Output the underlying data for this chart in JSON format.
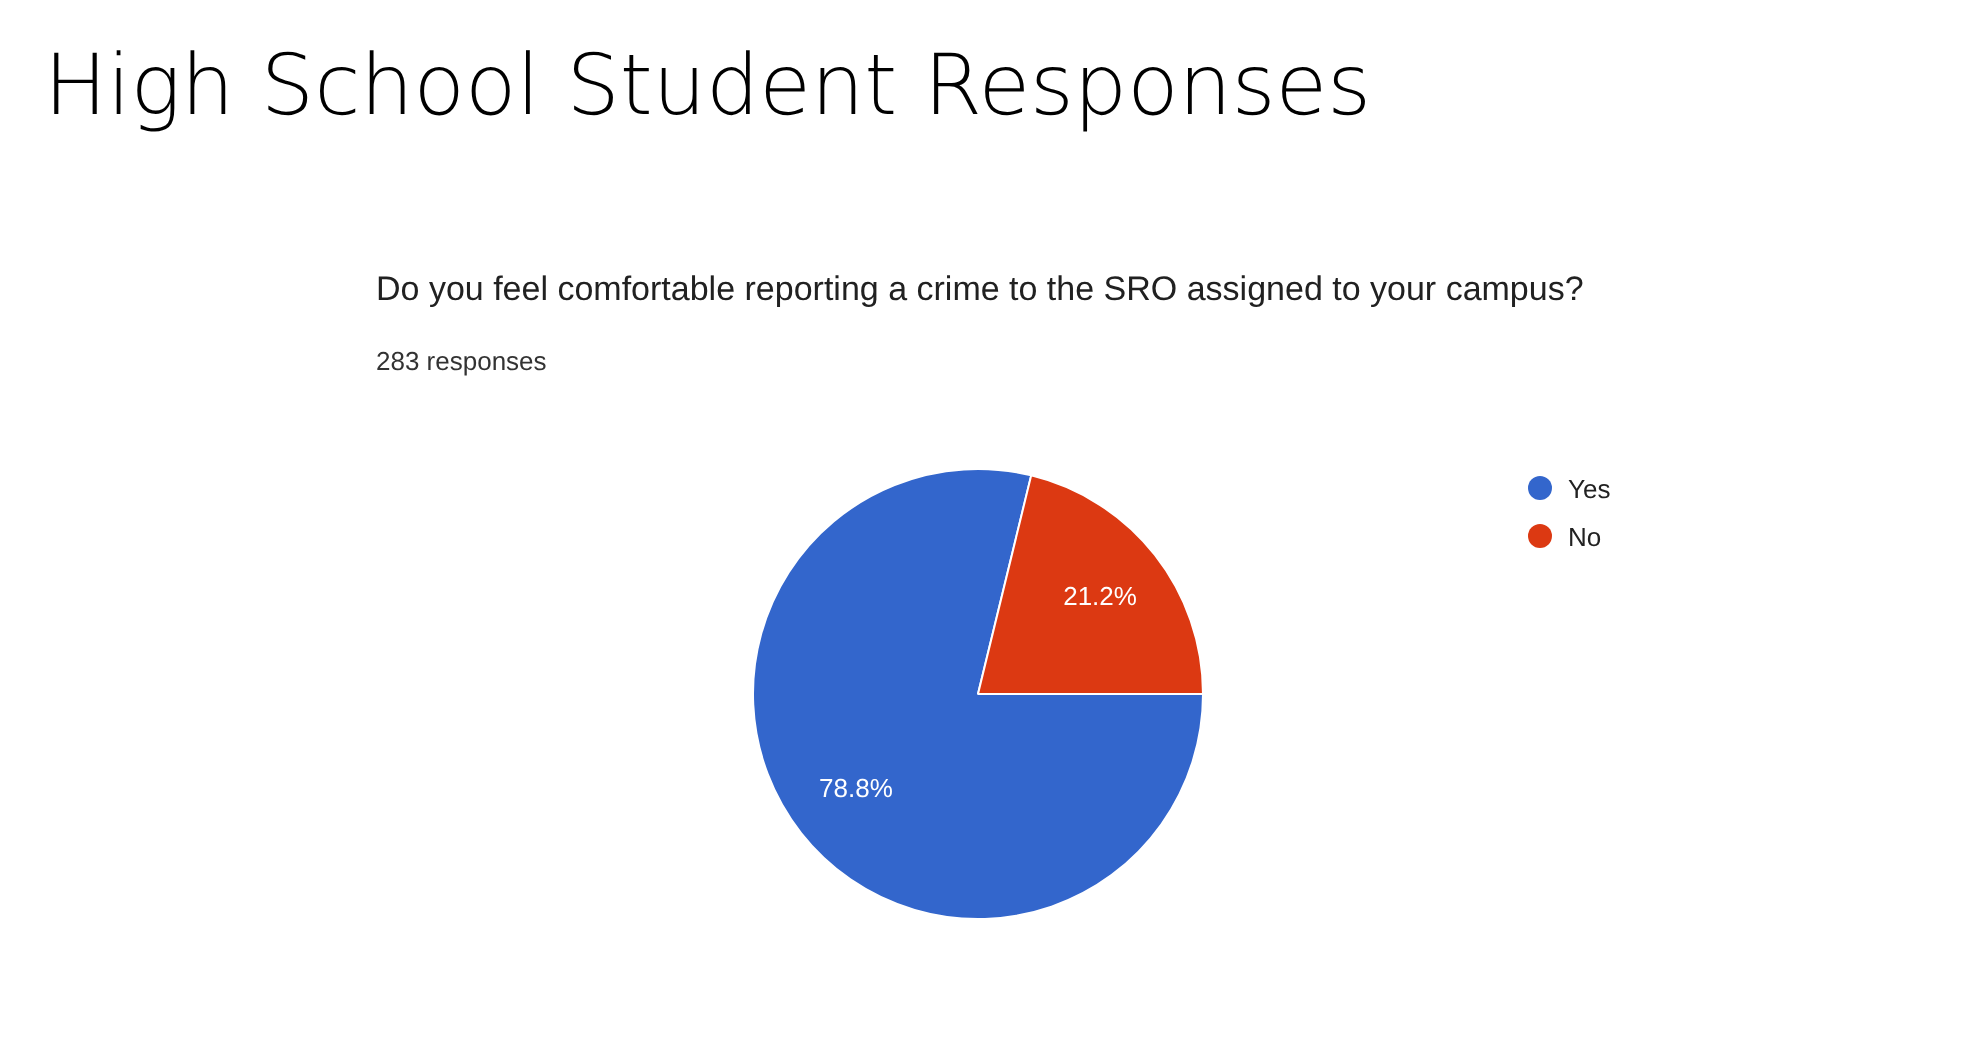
{
  "chart_data": {
    "type": "pie",
    "title": "High School Student Responses",
    "subtitle": "Do you feel comfortable reporting a crime to the SRO assigned to your campus?",
    "annotations": [
      "283 responses"
    ],
    "categories": [
      "Yes",
      "No"
    ],
    "values": [
      78.8,
      21.2
    ],
    "colors": [
      "#3366cc",
      "#dc3912"
    ],
    "value_labels": [
      "78.8%",
      "21.2%"
    ],
    "legend": "right"
  }
}
